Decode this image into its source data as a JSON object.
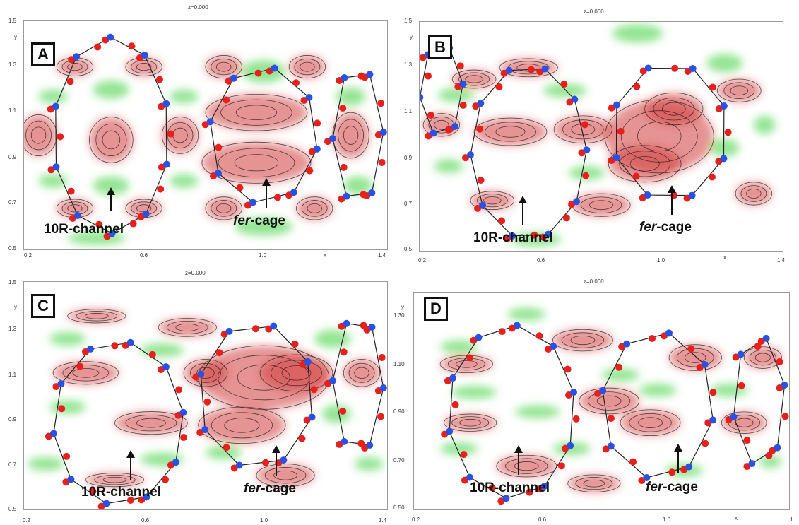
{
  "panels": [
    {
      "label": "A",
      "ztitle": "z=0.000",
      "xticks": [
        "0.2",
        "0.6",
        "1.0",
        "1.4"
      ],
      "yticks": [
        "1.5",
        "1.3",
        "1.1",
        "0.9",
        "0.7",
        "0.5"
      ],
      "xlabel": "x",
      "ylabel": "y",
      "ann_channel": "10R-channel",
      "ann_cage_italic": "fer",
      "ann_cage_rest": "-cage"
    },
    {
      "label": "B",
      "ztitle": "z=0.000",
      "xticks": [
        "0.2",
        "0.6",
        "1.0",
        "1.4"
      ],
      "yticks": [
        "1.5",
        "1.3",
        "1.1",
        "0.9",
        "0.7",
        "0.5"
      ],
      "xlabel": "x",
      "ylabel": "y",
      "ann_channel": "10R-channel",
      "ann_cage_italic": "fer",
      "ann_cage_rest": "-cage"
    },
    {
      "label": "C",
      "ztitle": "z=0.000",
      "xticks": [
        "0.2",
        "0.6",
        "1.0",
        "1.4"
      ],
      "yticks": [
        "1.5",
        "1.3",
        "1.1",
        "0.9",
        "0.7",
        "0.5"
      ],
      "xlabel": "",
      "ylabel": "y",
      "ann_channel": "10R-channel",
      "ann_cage_italic": "fer",
      "ann_cage_rest": "-cage"
    },
    {
      "label": "D",
      "ztitle": "z=0.000",
      "xticks": [
        "0.2",
        "0.6",
        "1.0",
        "1."
      ],
      "yticks": [
        "1.30",
        "1.10",
        "0.90",
        "0.70",
        "0.50"
      ],
      "xlabel": "x",
      "ylabel": "y",
      "ann_channel": "10R-channel",
      "ann_cage_italic": "fer",
      "ann_cage_rest": "-cage"
    }
  ],
  "colors": {
    "oxygen": "#e8201c",
    "silicon": "#2a52e0",
    "density_high": "#d23a3a",
    "density_low": "#4cd34c",
    "contour": "#1a1a1a"
  }
}
